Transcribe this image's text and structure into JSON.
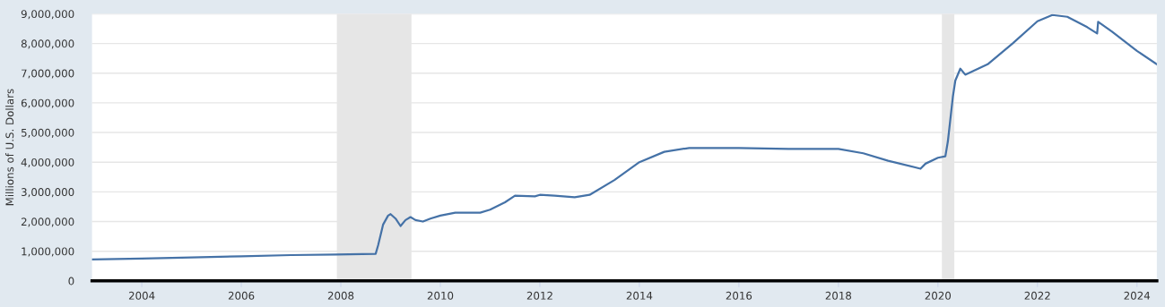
{
  "chart_data": {
    "type": "line",
    "ylabel": "Millions of U.S. Dollars",
    "x": [
      2003.0,
      2004.0,
      2005.0,
      2006.0,
      2007.0,
      2007.9,
      2008.7,
      2008.75,
      2008.85,
      2008.95,
      2009.0,
      2009.1,
      2009.2,
      2009.3,
      2009.4,
      2009.5,
      2009.65,
      2009.8,
      2010.0,
      2010.3,
      2010.8,
      2011.0,
      2011.3,
      2011.5,
      2011.9,
      2012.0,
      2012.3,
      2012.7,
      2013.0,
      2013.5,
      2014.0,
      2014.5,
      2015.0,
      2016.0,
      2017.0,
      2018.0,
      2018.5,
      2019.0,
      2019.65,
      2019.75,
      2020.0,
      2020.15,
      2020.2,
      2020.3,
      2020.35,
      2020.45,
      2020.55,
      2021.0,
      2021.5,
      2022.0,
      2022.3,
      2022.6,
      2023.0,
      2023.2,
      2023.22,
      2023.5,
      2024.0,
      2024.4
    ],
    "series": [
      {
        "color": "#4572a7",
        "values": [
          720000,
          750000,
          790000,
          830000,
          870000,
          890000,
          910000,
          1200000,
          1900000,
          2200000,
          2250000,
          2100000,
          1850000,
          2050000,
          2150000,
          2050000,
          2000000,
          2100000,
          2200000,
          2300000,
          2300000,
          2400000,
          2650000,
          2870000,
          2850000,
          2900000,
          2870000,
          2820000,
          2900000,
          3400000,
          4000000,
          4350000,
          4480000,
          4480000,
          4450000,
          4450000,
          4300000,
          4050000,
          3780000,
          3950000,
          4150000,
          4200000,
          4700000,
          6200000,
          6750000,
          7150000,
          6950000,
          7300000,
          8000000,
          8750000,
          8960000,
          8900000,
          8550000,
          8340000,
          8730000,
          8400000,
          7750000,
          7300000
        ]
      }
    ],
    "xlim": [
      2003.0,
      2024.4
    ],
    "xticks": [
      2004,
      2006,
      2008,
      2010,
      2012,
      2014,
      2016,
      2018,
      2020,
      2022,
      2024
    ],
    "ylim": [
      0,
      9000000
    ],
    "yticks": [
      0,
      {
        "value": 1000000,
        "label": "1,000,000"
      },
      {
        "value": 2000000,
        "label": "2,000,000"
      },
      {
        "value": 3000000,
        "label": "3,000,000"
      },
      {
        "value": 4000000,
        "label": "4,000,000"
      },
      {
        "value": 5000000,
        "label": "5,000,000"
      },
      {
        "value": 6000000,
        "label": "6,000,000"
      },
      {
        "value": 7000000,
        "label": "7,000,000"
      },
      {
        "value": 8000000,
        "label": "8,000,000"
      },
      {
        "value": 9000000,
        "label": "9,000,000"
      }
    ],
    "bands": [
      {
        "axis": "x",
        "from": 2007.92,
        "to": 2009.42,
        "color": "#e6e6e6"
      },
      {
        "axis": "x",
        "from": 2020.08,
        "to": 2020.33,
        "color": "#e6e6e6"
      }
    ],
    "grid": "y",
    "legend": false,
    "marker": "none",
    "line_style": "solid"
  }
}
